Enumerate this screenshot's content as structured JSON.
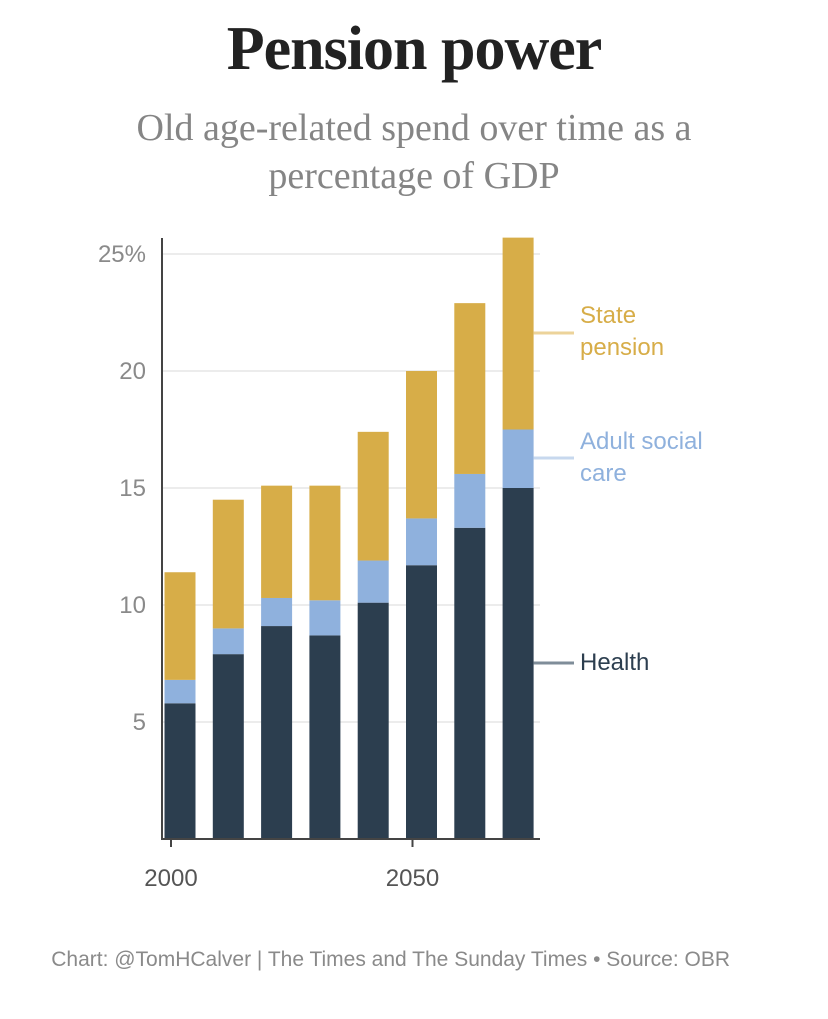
{
  "title": "Pension power",
  "subtitle": "Old age-related spend over time as a percentage of GDP",
  "source": "Chart: @TomHCalver | The Times and The Sunday Times • Source: OBR",
  "colors": {
    "health": "#2c3e4f",
    "adult_social_care": "#8fb1dd",
    "state_pension": "#d7ad48",
    "axis": "#444444",
    "grid": "#e6e6e6",
    "tick_label": "#8a8a8a"
  },
  "chart_data": {
    "type": "bar",
    "stacked": true,
    "x_ticks": [
      {
        "value": 2000,
        "label": "2000"
      },
      {
        "value": 2050,
        "label": "2050"
      }
    ],
    "y_ticks": [
      {
        "value": 5,
        "label": "5"
      },
      {
        "value": 10,
        "label": "10"
      },
      {
        "value": 15,
        "label": "15"
      },
      {
        "value": 20,
        "label": "20"
      },
      {
        "value": 25,
        "label": "25%"
      }
    ],
    "ylim": [
      0,
      26
    ],
    "grid": true,
    "x": [
      2000,
      2010,
      2020,
      2030,
      2040,
      2050,
      2060,
      2070
    ],
    "series": [
      {
        "key": "health",
        "values": [
          5.8,
          7.9,
          9.1,
          8.7,
          10.1,
          11.7,
          13.3,
          15.0
        ]
      },
      {
        "key": "adult_social_care",
        "values": [
          1.0,
          1.1,
          1.2,
          1.5,
          1.8,
          2.0,
          2.3,
          2.5
        ]
      },
      {
        "key": "state_pension",
        "values": [
          4.6,
          5.5,
          4.8,
          4.9,
          5.5,
          6.3,
          7.3,
          8.2
        ]
      }
    ],
    "labels": [
      {
        "series": "state_pension",
        "text": "State\npension"
      },
      {
        "series": "adult_social_care",
        "text": "Adult social\ncare"
      },
      {
        "series": "health",
        "text": "Health"
      }
    ]
  }
}
